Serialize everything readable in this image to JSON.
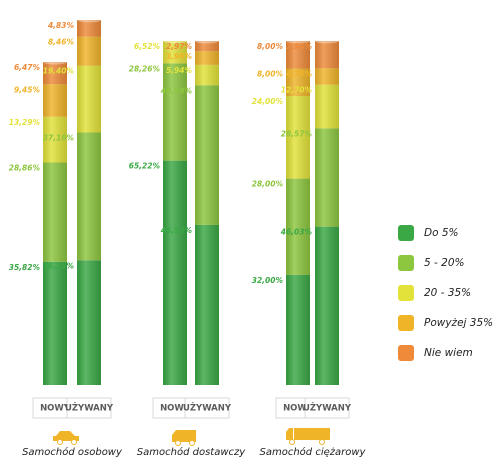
{
  "chart_data": {
    "type": "stacked-bar",
    "categories": [
      "NOWY",
      "UŻYWANY",
      "NOWY",
      "UŻYWANY",
      "NOWY",
      "UŻYWANY"
    ],
    "groups": [
      "Samochód osobowy",
      "Samochód dostawczy",
      "Samochód ciężarowy"
    ],
    "series": [
      {
        "name": "Do 5%",
        "color": "#3aa845",
        "values": [
          35.82,
          36.25,
          65.22,
          46.53,
          32.0,
          46.03
        ],
        "value_labels": [
          "35,82%",
          "36,25%",
          "65,22%",
          "46,53%",
          "32,00%",
          "46,03%"
        ]
      },
      {
        "name": "5 - 20%",
        "color": "#8dc63f",
        "values": [
          28.86,
          37.16,
          28.26,
          40.59,
          28.0,
          28.57
        ],
        "value_labels": [
          "28,86%",
          "37,16%",
          "28,26%",
          "40,59%",
          "28,00%",
          "28,57%"
        ]
      },
      {
        "name": "20 - 35%",
        "color": "#e2e23a",
        "values": [
          13.29,
          19.4,
          6.52,
          5.94,
          24.0,
          12.7
        ],
        "value_labels": [
          "13,29%",
          "19,40%",
          "6,52%",
          "5,94%",
          "24,00%",
          "12,70%"
        ]
      },
      {
        "name": "Powyżej 35%",
        "color": "#f0b429",
        "values": [
          9.45,
          8.46,
          null,
          3.96,
          8.0,
          4.76
        ],
        "value_labels": [
          "9,45%",
          "8,46%",
          null,
          "3,96%",
          "8,00%",
          "4,76%"
        ]
      },
      {
        "name": "Nie wiem",
        "color": "#ee8a3a",
        "values": [
          6.47,
          4.83,
          null,
          2.97,
          8.0,
          7.94
        ],
        "value_labels": [
          "6,47%",
          "4,83%",
          null,
          "2,97%",
          "8,00%",
          "7,94%"
        ]
      }
    ]
  }
}
